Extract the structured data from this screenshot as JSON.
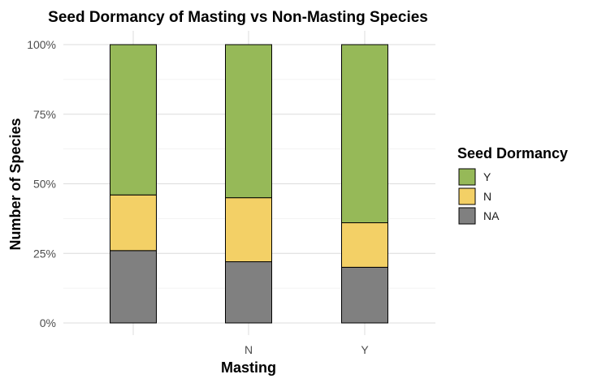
{
  "chart_data": {
    "type": "bar",
    "stacked": true,
    "normalized": true,
    "title": "Seed Dormancy of Masting vs Non-Masting Species",
    "xlabel": "Masting",
    "ylabel": "Number of Species",
    "categories": [
      "",
      "N",
      "Y"
    ],
    "ylim": [
      0,
      1
    ],
    "yticks": [
      "0%",
      "25%",
      "50%",
      "75%",
      "100%"
    ],
    "grid": true,
    "series": [
      {
        "name": "NA",
        "color": "#808080",
        "values": [
          0.26,
          0.22,
          0.2
        ]
      },
      {
        "name": "N",
        "color": "#F3D066",
        "values": [
          0.2,
          0.23,
          0.16
        ]
      },
      {
        "name": "Y",
        "color": "#96B958",
        "values": [
          0.54,
          0.55,
          0.64
        ]
      }
    ],
    "legend": {
      "title": "Seed Dormancy",
      "position": "right",
      "order": [
        "Y",
        "N",
        "NA"
      ]
    }
  }
}
